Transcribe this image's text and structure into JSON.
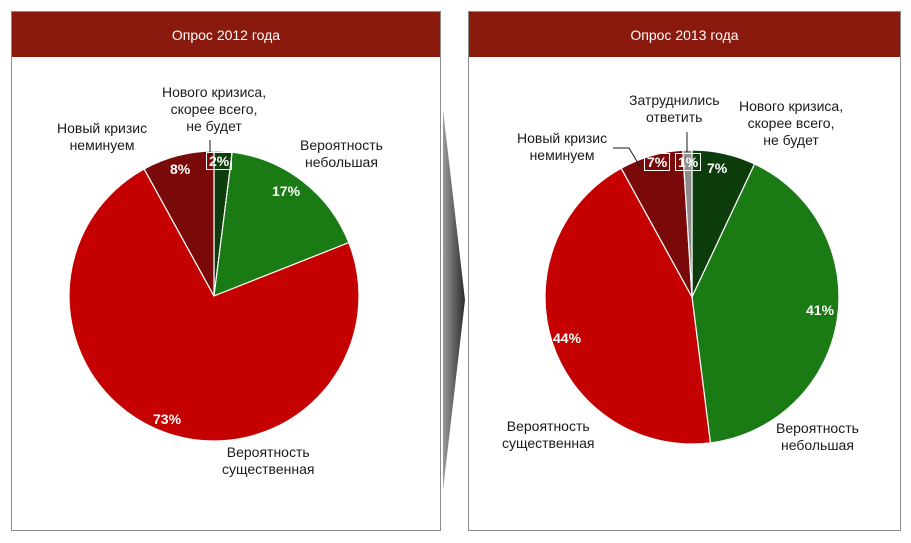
{
  "chart_data": [
    {
      "type": "pie",
      "title": "Опрос 2012 года",
      "slices": [
        {
          "label": "Нового кризиса, скорее всего, не будет",
          "label_lines": [
            "Нового кризиса,",
            "скорее всего,",
            "не будет"
          ],
          "value": 2,
          "pct_label": "2%",
          "color": "#0d3d0d"
        },
        {
          "label": "Вероятность небольшая",
          "label_lines": [
            "Вероятность",
            "небольшая"
          ],
          "value": 17,
          "pct_label": "17%",
          "color": "#1a7a14"
        },
        {
          "label": "Вероятность существенная",
          "label_lines": [
            "Вероятность",
            "существенная"
          ],
          "value": 73,
          "pct_label": "73%",
          "color": "#c40000"
        },
        {
          "label": "Новый кризис неминуем",
          "label_lines": [
            "Новый кризис",
            "неминуем"
          ],
          "value": 8,
          "pct_label": "8%",
          "color": "#7a0a0a"
        }
      ]
    },
    {
      "type": "pie",
      "title": "Опрос 2013 года",
      "slices": [
        {
          "label": "Нового кризиса, скорее всего, не будет",
          "label_lines": [
            "Нового кризиса,",
            "скорее всего,",
            "не будет"
          ],
          "value": 7,
          "pct_label": "7%",
          "color": "#0d3d0d"
        },
        {
          "label": "Вероятность небольшая",
          "label_lines": [
            "Вероятность",
            "небольшая"
          ],
          "value": 41,
          "pct_label": "41%",
          "color": "#1a7a14"
        },
        {
          "label": "Вероятность существенная",
          "label_lines": [
            "Вероятность",
            "существенная"
          ],
          "value": 44,
          "pct_label": "44%",
          "color": "#c40000"
        },
        {
          "label": "Новый кризис неминуем",
          "label_lines": [
            "Новый кризис",
            "неминуем"
          ],
          "value": 7,
          "pct_label": "7%",
          "color": "#7a0a0a"
        },
        {
          "label": "Затруднились ответить",
          "label_lines": [
            "Затруднились",
            "ответить"
          ],
          "value": 1,
          "pct_label": "1%",
          "color": "#8c8c8c"
        }
      ]
    }
  ],
  "colors": {
    "header_bg": "#8b1a0e",
    "border": "#8c8c8c",
    "arrow": "#3a3a3a"
  }
}
